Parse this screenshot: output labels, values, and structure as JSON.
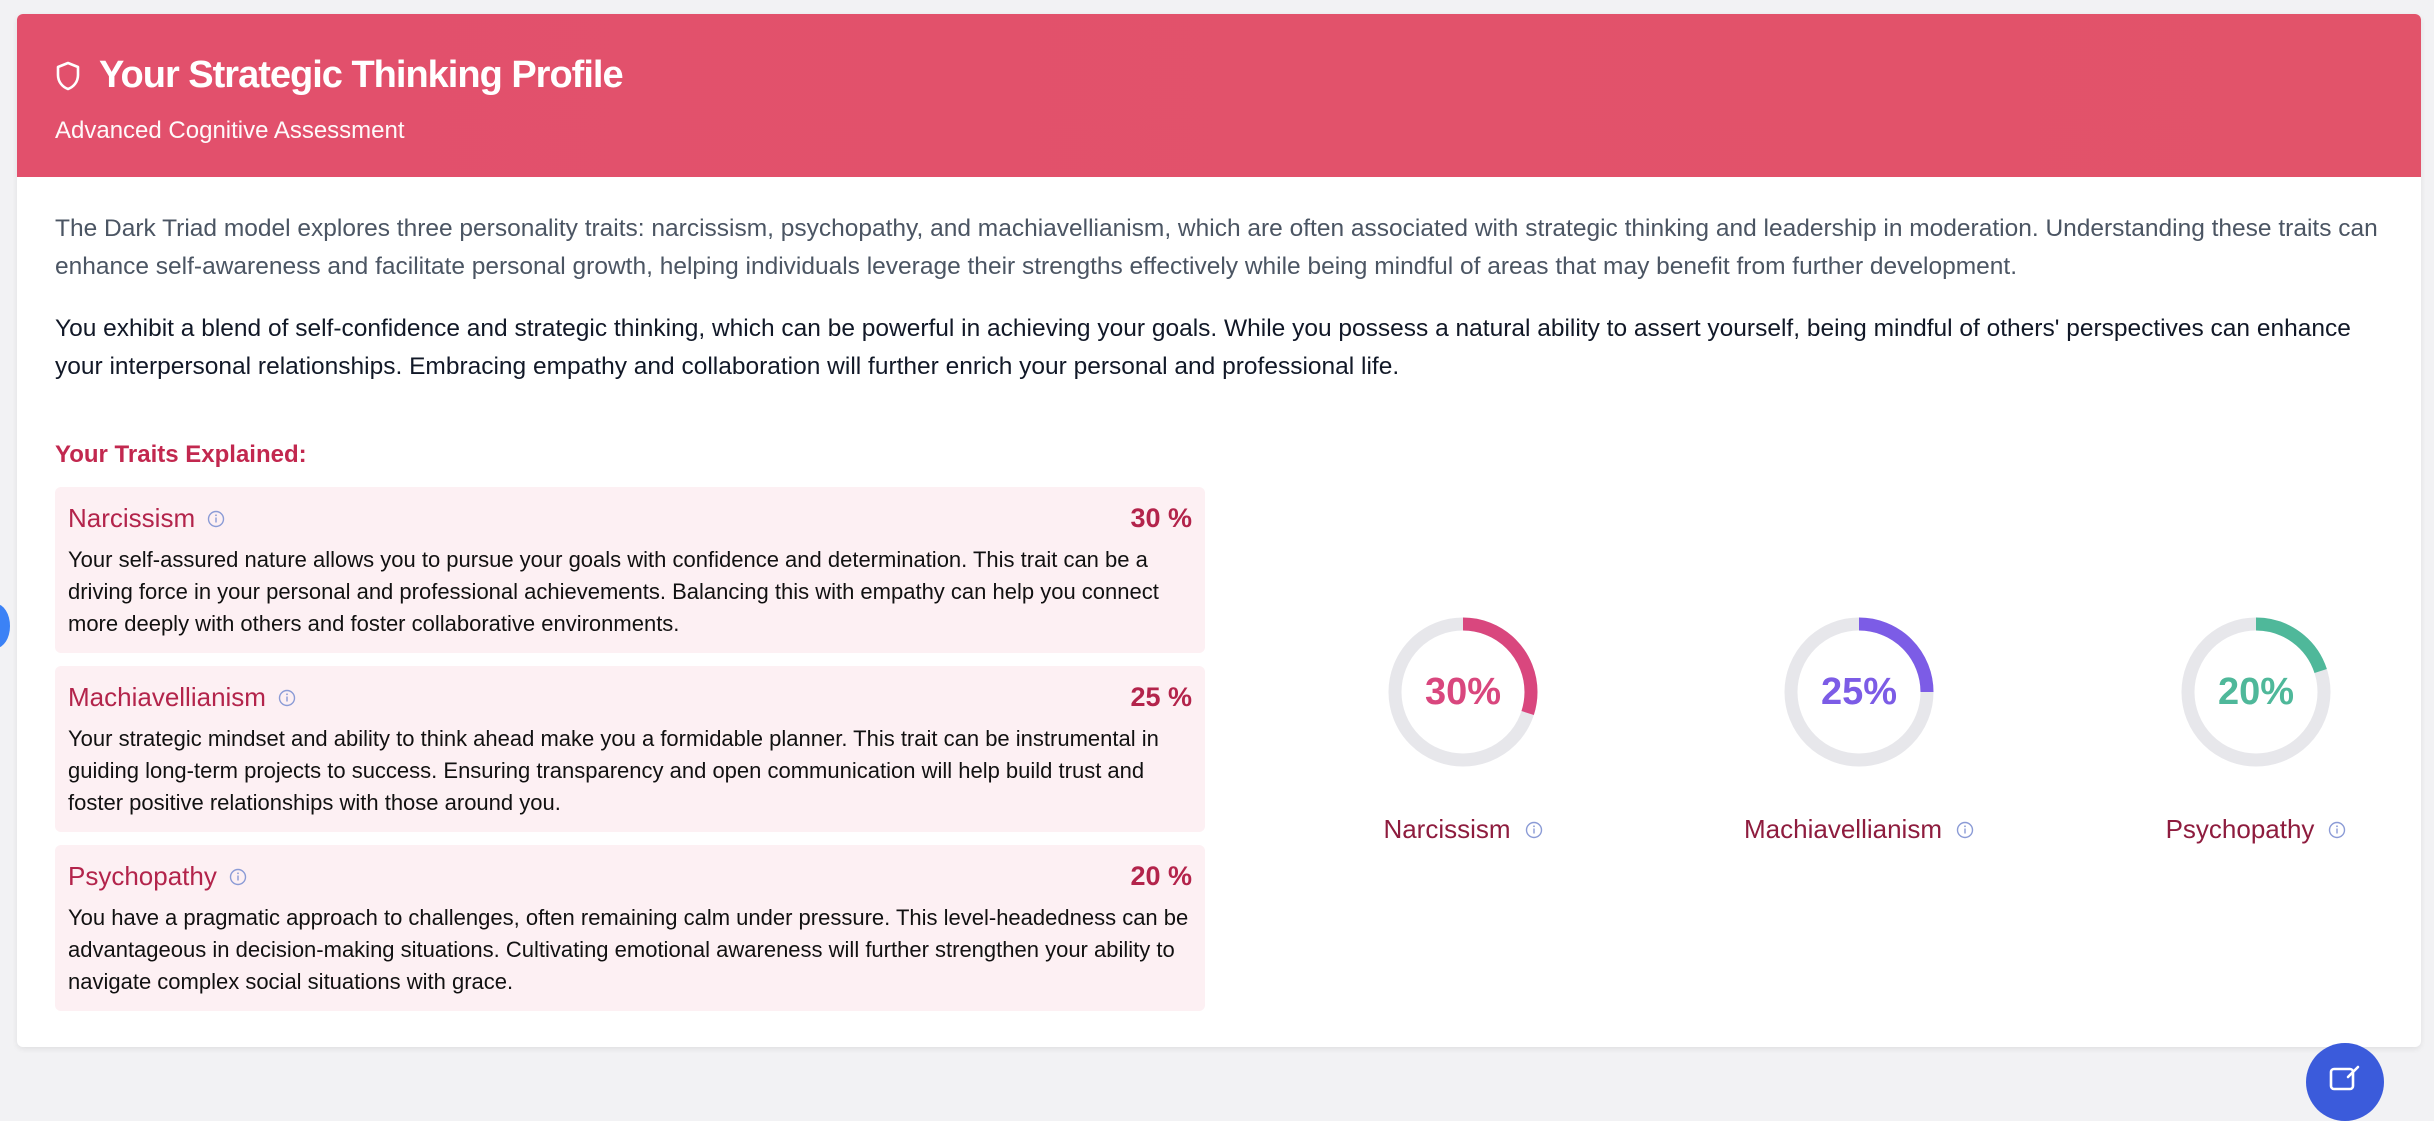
{
  "header": {
    "title": "Your Strategic Thinking Profile",
    "subtitle": "Advanced Cognitive Assessment",
    "icon": "shield-icon",
    "color": "#e2506c"
  },
  "intro": "The Dark Triad model explores three personality traits: narcissism, psychopathy, and machiavellianism, which are often associated with strategic thinking and leadership in moderation. Understanding these traits can enhance self-awareness and facilitate personal growth, helping individuals leverage their strengths effectively while being mindful of areas that may benefit from further development.",
  "summary": "You exhibit a blend of self-confidence and strategic thinking, which can be powerful in achieving your goals. While you possess a natural ability to assert yourself, being mindful of others' perspectives can enhance your interpersonal relationships. Embracing empathy and collaboration will further enrich your personal and professional life.",
  "traits_heading": "Your Traits Explained:",
  "traits": [
    {
      "name": "Narcissism",
      "percent_label": "30 %",
      "description": "Your self-assured nature allows you to pursue your goals with confidence and determination. This trait can be a driving force in your personal and professional achievements. Balancing this with empathy can help you connect more deeply with others and foster collaborative environments."
    },
    {
      "name": "Machiavellianism",
      "percent_label": "25 %",
      "description": "Your strategic mindset and ability to think ahead make you a formidable planner. This trait can be instrumental in guiding long-term projects to success. Ensuring transparency and open communication will help build trust and foster positive relationships with those around you."
    },
    {
      "name": "Psychopathy",
      "percent_label": "20 %",
      "description": "You have a pragmatic approach to challenges, often remaining calm under pressure. This level-headedness can be advantageous in decision-making situations. Cultivating emotional awareness will further strengthen your ability to navigate complex social situations with grace."
    }
  ],
  "gauges": [
    {
      "label": "Narcissism",
      "value_label": "30%",
      "value": 0.3,
      "color": "#d9477e"
    },
    {
      "label": "Machiavellianism",
      "value_label": "25%",
      "value": 0.25,
      "color": "#7c5ce6"
    },
    {
      "label": "Psychopathy",
      "value_label": "20%",
      "value": 0.2,
      "color": "#4fb89a"
    }
  ],
  "colors": {
    "accent": "#c2284f",
    "trait_bg": "#fdf0f3",
    "track": "#e7e7eb"
  },
  "fab_icon": "edit-icon"
}
